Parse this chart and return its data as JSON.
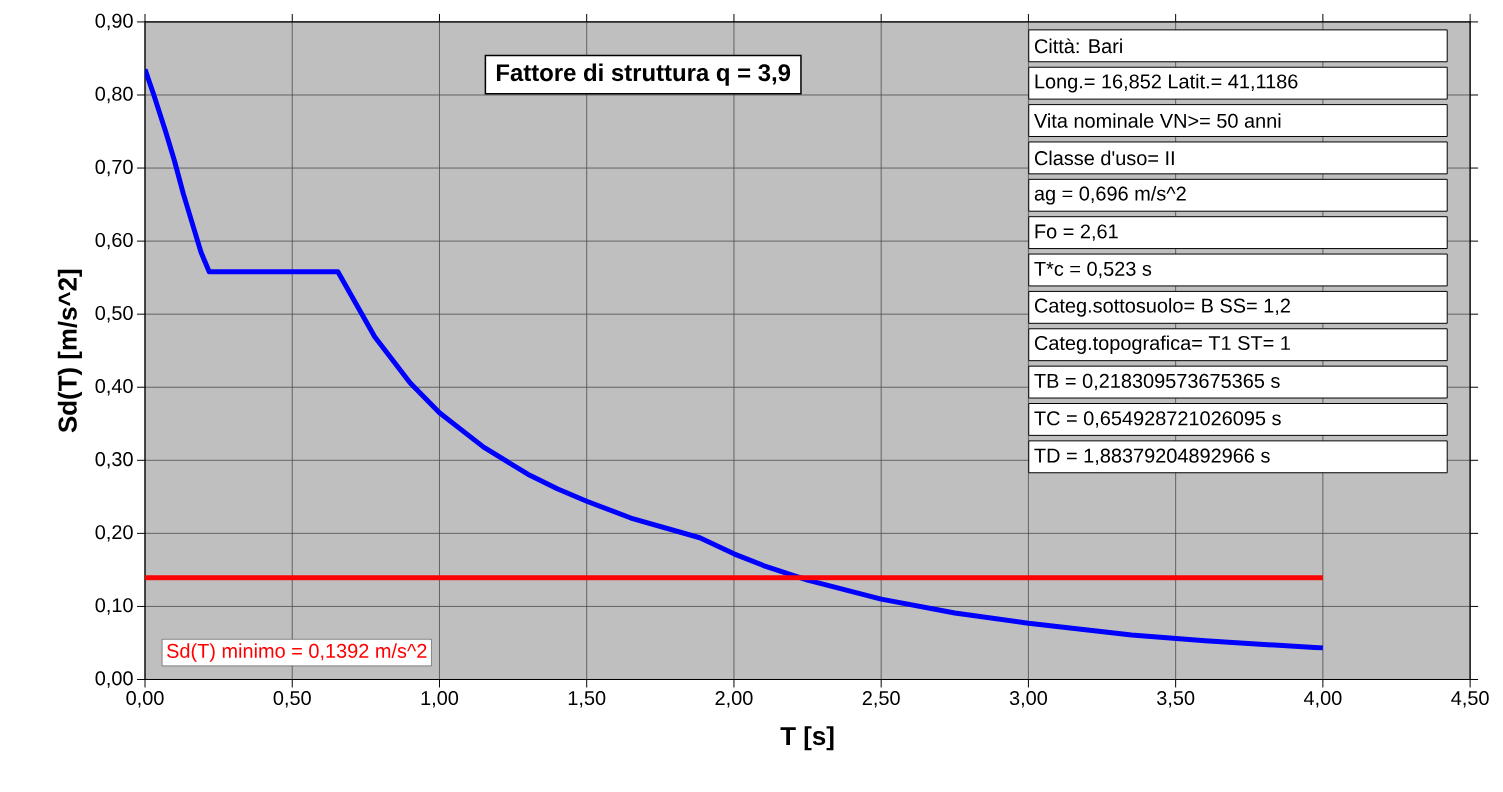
{
  "chart_data": {
    "type": "line",
    "title": "Fattore di struttura q = 3,9",
    "xlabel": "T  [s]",
    "ylabel": "Sd(T)  [m/s^2]",
    "xlim": [
      0,
      4.5
    ],
    "ylim": [
      0,
      0.9
    ],
    "xticks": [
      {
        "value": 0,
        "label": "0,00"
      },
      {
        "value": 0.5,
        "label": "0,50"
      },
      {
        "value": 1,
        "label": "1,00"
      },
      {
        "value": 1.5,
        "label": "1,50"
      },
      {
        "value": 2,
        "label": "2,00"
      },
      {
        "value": 2.5,
        "label": "2,50"
      },
      {
        "value": 3,
        "label": "3,00"
      },
      {
        "value": 3.5,
        "label": "3,50"
      },
      {
        "value": 4,
        "label": "4,00"
      },
      {
        "value": 4.5,
        "label": "4,50"
      }
    ],
    "yticks": [
      {
        "value": 0,
        "label": "0,00"
      },
      {
        "value": 0.1,
        "label": "0,10"
      },
      {
        "value": 0.2,
        "label": "0,20"
      },
      {
        "value": 0.3,
        "label": "0,30"
      },
      {
        "value": 0.4,
        "label": "0,40"
      },
      {
        "value": 0.5,
        "label": "0,50"
      },
      {
        "value": 0.6,
        "label": "0,60"
      },
      {
        "value": 0.7,
        "label": "0,70"
      },
      {
        "value": 0.8,
        "label": "0,80"
      },
      {
        "value": 0.9,
        "label": "0,90"
      }
    ],
    "grid": true,
    "series": [
      {
        "color": "#0000ff",
        "x": [
          0,
          0.03,
          0.07,
          0.1,
          0.13,
          0.16,
          0.19,
          0.218,
          0.655,
          0.78,
          0.9,
          1.0,
          1.15,
          1.3,
          1.4,
          1.5,
          1.65,
          1.884,
          2.0,
          2.1,
          2.25,
          2.5,
          2.75,
          3.0,
          3.35,
          3.6,
          3.8,
          4.0
        ],
        "values": [
          0.835,
          0.8,
          0.75,
          0.71,
          0.665,
          0.625,
          0.585,
          0.558,
          0.558,
          0.469,
          0.406,
          0.365,
          0.318,
          0.281,
          0.261,
          0.244,
          0.221,
          0.194,
          0.172,
          0.156,
          0.136,
          0.11,
          0.091,
          0.077,
          0.061,
          0.053,
          0.048,
          0.043
        ]
      },
      {
        "name": "Sd(T) minimo = 0,1392 m/s^2",
        "color": "#ff0000",
        "x": [
          0,
          4
        ],
        "values": [
          0.1392,
          0.1392
        ]
      }
    ],
    "annotations": [
      "Città:  Bari",
      "Long.=  16,852   Latit.=  41,1186",
      "Vita nominale VN>=  50  anni",
      "Classe d'uso=  II",
      "ag =  0,696 m/s^2",
      "Fo = 2,61",
      "T*c = 0,523 s",
      "Categ.sottosuolo= B  SS= 1,2",
      "Categ.topografica= T1  ST= 1",
      "TB = 0,218309573675365  s",
      "TC = 0,654928721026095  s",
      "TD = 1,88379204892966 s"
    ]
  }
}
